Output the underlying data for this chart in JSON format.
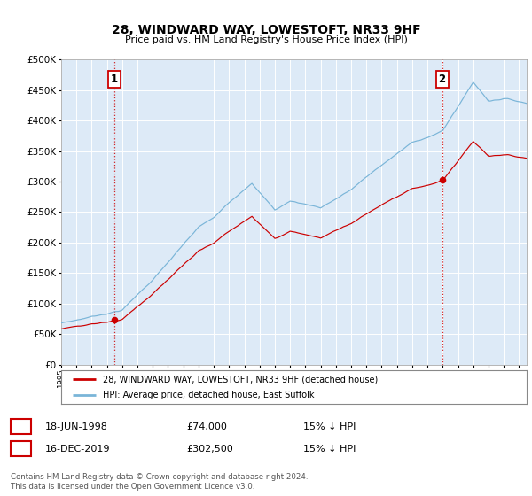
{
  "title": "28, WINDWARD WAY, LOWESTOFT, NR33 9HF",
  "subtitle": "Price paid vs. HM Land Registry's House Price Index (HPI)",
  "hpi_label": "HPI: Average price, detached house, East Suffolk",
  "property_label": "28, WINDWARD WAY, LOWESTOFT, NR33 9HF (detached house)",
  "sale1_date": "18-JUN-1998",
  "sale1_price": "£74,000",
  "sale1_note": "15% ↓ HPI",
  "sale2_date": "16-DEC-2019",
  "sale2_price": "£302,500",
  "sale2_note": "15% ↓ HPI",
  "sale1_year": 1998.46,
  "sale1_value": 74000,
  "sale2_year": 2019.96,
  "sale2_value": 302500,
  "hpi_color": "#7ab5d8",
  "property_color": "#cc0000",
  "dashed_line_color": "#cc0000",
  "background_color": "#ddeaf7",
  "grid_color": "#ffffff",
  "ylim_max": 500000,
  "ylim_min": 0,
  "xmin": 1995,
  "xmax": 2025.5,
  "footer": "Contains HM Land Registry data © Crown copyright and database right 2024.\nThis data is licensed under the Open Government Licence v3.0."
}
